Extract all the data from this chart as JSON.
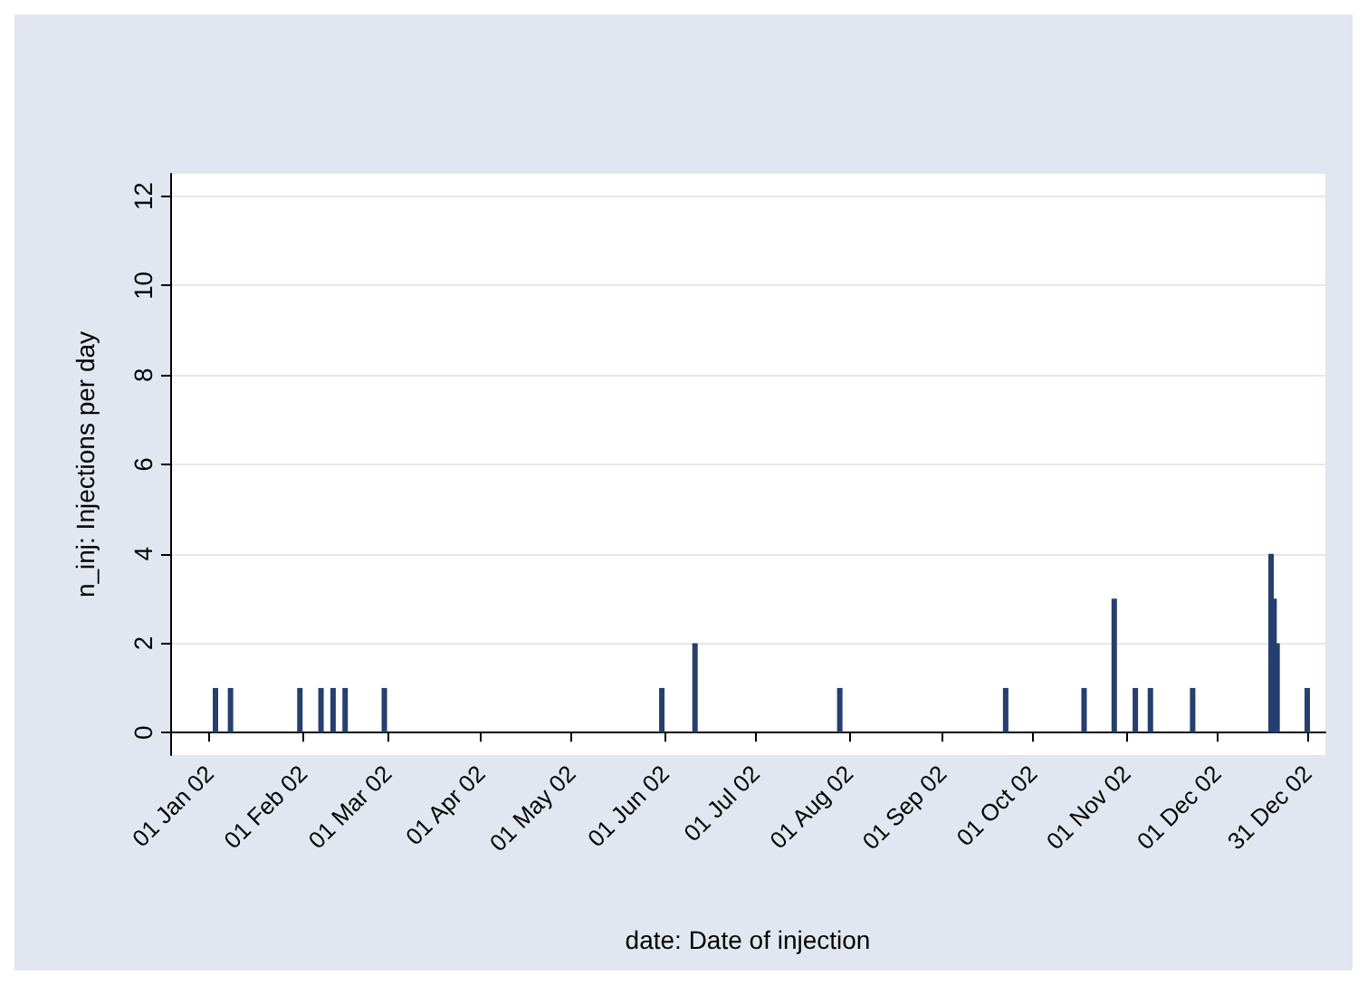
{
  "chart_data": {
    "type": "bar",
    "xlabel": "date: Date of injection",
    "ylabel": "n_inj: Injections per day",
    "x": [
      "2002-01-03",
      "2002-01-08",
      "2002-01-31",
      "2002-02-07",
      "2002-02-11",
      "2002-02-15",
      "2002-02-28",
      "2002-05-31",
      "2002-06-11",
      "2002-07-29",
      "2002-09-22",
      "2002-10-18",
      "2002-10-28",
      "2002-11-04",
      "2002-11-09",
      "2002-11-23",
      "2002-12-19",
      "2002-12-20",
      "2002-12-21",
      "2002-12-31"
    ],
    "values": [
      1,
      1,
      1,
      1,
      1,
      1,
      1,
      1,
      2,
      1,
      1,
      1,
      3,
      1,
      1,
      1,
      4,
      3,
      2,
      1
    ],
    "color": "#253f6e",
    "xlim": [
      "2001-12-19",
      "2003-01-06"
    ],
    "xticks": [
      {
        "value": "2002-01-01",
        "label": "01 Jan 02"
      },
      {
        "value": "2002-02-01",
        "label": "01 Feb 02"
      },
      {
        "value": "2002-03-01",
        "label": "01 Mar 02"
      },
      {
        "value": "2002-04-01",
        "label": "01 Apr 02"
      },
      {
        "value": "2002-05-01",
        "label": "01 May 02"
      },
      {
        "value": "2002-06-01",
        "label": "01 Jun 02"
      },
      {
        "value": "2002-07-01",
        "label": "01 Jul 02"
      },
      {
        "value": "2002-08-01",
        "label": "01 Aug 02"
      },
      {
        "value": "2002-09-01",
        "label": "01 Sep 02"
      },
      {
        "value": "2002-10-01",
        "label": "01 Oct 02"
      },
      {
        "value": "2002-11-01",
        "label": "01 Nov 02"
      },
      {
        "value": "2002-12-01",
        "label": "01 Dec 02"
      },
      {
        "value": "2002-12-31",
        "label": "31 Dec 02"
      }
    ],
    "ylim": [
      -0.5,
      12.5
    ],
    "yticks": [
      0,
      2,
      4,
      6,
      8,
      10,
      12
    ],
    "grid": "y"
  }
}
